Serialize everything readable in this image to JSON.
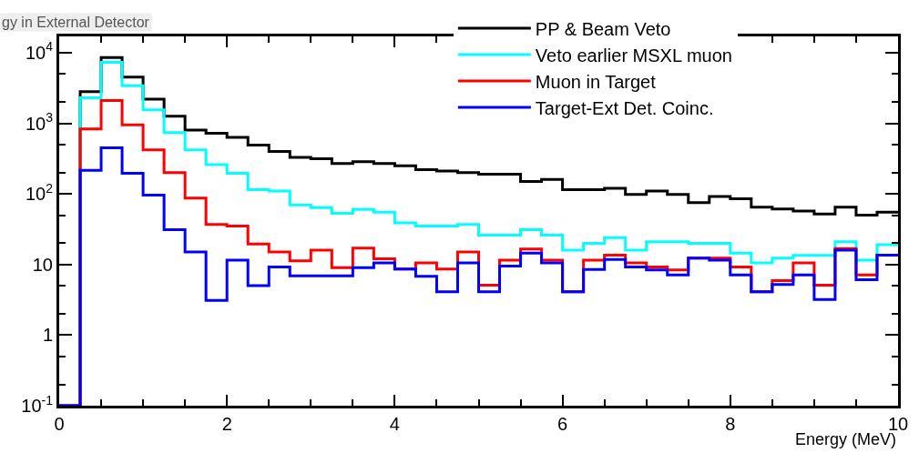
{
  "chart_data": {
    "type": "histogram",
    "title": "gy in External Detector",
    "xlabel": "Energy (MeV)",
    "bins": [
      0,
      0.25,
      0.5,
      0.75,
      1,
      1.25,
      1.5,
      1.75,
      2,
      2.25,
      2.5,
      2.75,
      3,
      3.25,
      3.5,
      3.75,
      4,
      4.25,
      4.5,
      4.75,
      5,
      5.25,
      5.5,
      5.75,
      6,
      6.25,
      6.5,
      6.75,
      7,
      7.25,
      7.5,
      7.75,
      8,
      8.25,
      8.5,
      8.75,
      9,
      9.25,
      9.5,
      9.75,
      10
    ],
    "series": [
      {
        "name": "PP & Beam Veto",
        "color": "#000000",
        "values": [
          0.1,
          2800,
          8500,
          4500,
          2200,
          1260,
          800,
          720,
          630,
          490,
          400,
          330,
          315,
          270,
          285,
          270,
          250,
          220,
          210,
          200,
          190,
          190,
          150,
          160,
          115,
          115,
          120,
          98,
          110,
          98,
          75,
          92,
          85,
          65,
          61,
          57,
          52,
          65,
          50,
          55
        ]
      },
      {
        "name": "Veto earlier MSXL muon",
        "color": "#00ffff",
        "values": [
          0.1,
          2300,
          7300,
          3400,
          1550,
          740,
          420,
          260,
          195,
          115,
          110,
          70,
          64,
          53,
          60,
          55,
          39,
          35,
          35,
          37,
          26,
          26,
          31,
          26,
          16,
          20,
          24,
          16,
          21,
          21,
          20,
          20,
          14.5,
          10.5,
          12.3,
          13.5,
          13.5,
          21,
          11.5,
          19
        ]
      },
      {
        "name": "Muon in Target",
        "color": "#ff0000",
        "values": [
          0.1,
          830,
          2100,
          950,
          420,
          200,
          87,
          37,
          35,
          19.5,
          15,
          11.3,
          16,
          9,
          17,
          12,
          8.6,
          10.5,
          8.6,
          15,
          5.1,
          11.5,
          16.5,
          11.5,
          4.1,
          11.5,
          13.6,
          10.5,
          9.2,
          8.4,
          12.3,
          12.3,
          9.2,
          4.1,
          5.9,
          10.5,
          5.1,
          16.8,
          7.1,
          13.6
        ]
      },
      {
        "name": "Target-Ext Det. Coinc.",
        "color": "#0000ff",
        "values": [
          0.1,
          215,
          450,
          195,
          96,
          31,
          15,
          3.1,
          11.5,
          5,
          9.2,
          6.9,
          6.9,
          6.9,
          9,
          10.5,
          8.6,
          6.8,
          4.1,
          10.5,
          4.1,
          9.5,
          14.5,
          10.5,
          4.1,
          8.5,
          11.8,
          9.2,
          8.4,
          7.1,
          12.3,
          11.5,
          7.1,
          4.1,
          5.2,
          7.1,
          3.2,
          16,
          6.1,
          13.6
        ]
      }
    ],
    "xlim": [
      0,
      10
    ],
    "xticks": [
      0,
      2,
      4,
      6,
      8,
      10
    ],
    "ylim": [
      0.1,
      17000
    ],
    "yticks": [
      {
        "value": 0.1,
        "label": "10$^{-1}$"
      },
      1,
      10,
      {
        "value": 100,
        "label": "10$^{2}$"
      },
      {
        "value": 1000,
        "label": "10$^{3}$"
      },
      {
        "value": 10000,
        "label": "10$^{4}$"
      }
    ],
    "log": "y",
    "legend": "top right"
  }
}
